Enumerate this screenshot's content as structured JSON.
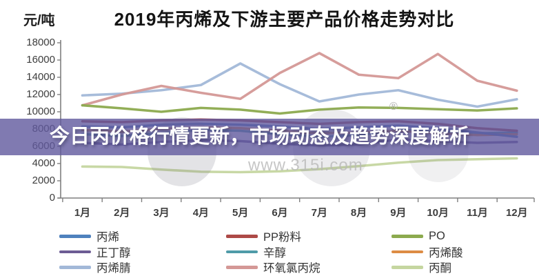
{
  "chart_data": {
    "type": "line",
    "title": "2019年丙烯及下游主要产品价格走势对比",
    "unit_label": "元/吨",
    "categories": [
      "1月",
      "2月",
      "3月",
      "4月",
      "5月",
      "6月",
      "7月",
      "8月",
      "9月",
      "10月",
      "11月",
      "12月"
    ],
    "ylim": [
      0,
      18000
    ],
    "ytick_interval": 2000,
    "grid": false,
    "legend_position": "bottom",
    "legend_order": [
      "propylene",
      "n-butanol",
      "acrylonitrile",
      "pp-powder",
      "octanol",
      "epichlorohydrin",
      "po",
      "acrylic-acid",
      "acetone"
    ],
    "series": [
      {
        "id": "n-butanol",
        "name": "正丁醇",
        "color": "#6c5c94",
        "values": [
          6400,
          6200,
          6500,
          6700,
          6600,
          6300,
          6100,
          6200,
          6800,
          6600,
          6400,
          6500
        ]
      },
      {
        "id": "octanol",
        "name": "辛醇",
        "color": "#4f9ba8",
        "values": [
          7400,
          7200,
          7500,
          7900,
          7800,
          7400,
          7100,
          7300,
          7900,
          7700,
          7500,
          7600
        ]
      },
      {
        "id": "acrylic-acid",
        "name": "丙烯酸",
        "color": "#dd8c44",
        "values": [
          7900,
          7700,
          8000,
          8200,
          8100,
          7800,
          7500,
          7600,
          7800,
          7500,
          7300,
          7400
        ]
      },
      {
        "id": "propylene",
        "name": "丙烯",
        "color": "#4f81bd",
        "values": [
          8300,
          8200,
          8500,
          8600,
          8500,
          8300,
          8000,
          8200,
          8400,
          8100,
          7600,
          7100
        ]
      },
      {
        "id": "pp-powder",
        "name": "PP粉料",
        "color": "#ad4a47",
        "values": [
          8900,
          8800,
          9000,
          9100,
          9000,
          8800,
          8600,
          8800,
          8900,
          8600,
          8100,
          7800
        ]
      },
      {
        "id": "acetone",
        "name": "丙酮",
        "color": "#c5d6a0",
        "values": [
          3650,
          3600,
          3300,
          3050,
          3000,
          3100,
          3350,
          3700,
          4100,
          4400,
          4500,
          4600
        ]
      },
      {
        "id": "acrylonitrile",
        "name": "丙烯腈",
        "color": "#a2b8d8",
        "values": [
          11900,
          12100,
          12500,
          13100,
          15600,
          13200,
          11200,
          12000,
          12500,
          11400,
          10600,
          11450
        ]
      },
      {
        "id": "epichlorohydrin",
        "name": "环氧氯丙烷",
        "color": "#d49896",
        "values": [
          10750,
          12000,
          13000,
          12200,
          11500,
          14500,
          16800,
          14300,
          13900,
          16700,
          13600,
          12450
        ]
      },
      {
        "id": "po",
        "name": "PO",
        "color": "#8caa4e",
        "values": [
          10750,
          10400,
          10000,
          10450,
          10250,
          9800,
          10250,
          10500,
          10450,
          10300,
          10150,
          10400
        ]
      }
    ]
  },
  "banner": {
    "text": "今日丙价格行情更新，市场动态及趋势深度解析"
  },
  "watermark": {
    "url": "www.315i.com",
    "reg_mark": "®"
  }
}
